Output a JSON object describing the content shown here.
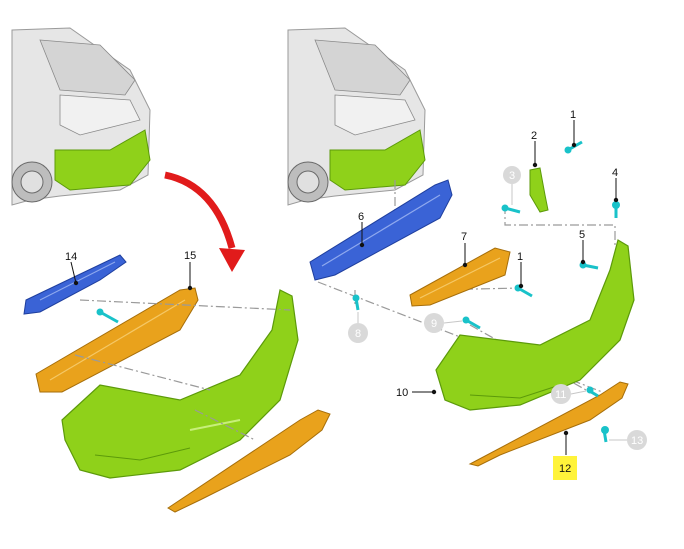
{
  "colors": {
    "bumper_green": "#8fd11a",
    "bumper_green_dark": "#5c9a0a",
    "reinforcement_blue": "#3a63d6",
    "absorber_orange": "#e9a21c",
    "clip_cyan": "#19c2c9",
    "arrow_red": "#e11b1b",
    "highlight_yellow": "#fff33a",
    "gray_callout": "#d9d9d9",
    "car_gray": "#e6e6e6"
  },
  "callouts": {
    "c14": "14",
    "c15": "15",
    "c6": "6",
    "c8": "8",
    "c7": "7",
    "c1a": "1",
    "c1b": "1",
    "c2": "2",
    "c3": "3",
    "c4": "4",
    "c5": "5",
    "c9": "9",
    "c10": "10",
    "c11": "11",
    "c12": "12",
    "c13": "13"
  }
}
